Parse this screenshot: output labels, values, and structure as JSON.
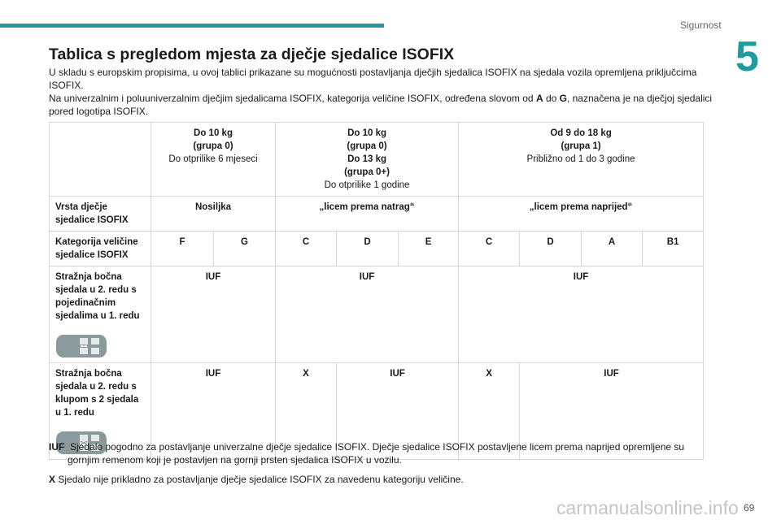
{
  "header": {
    "section": "Sigurnost",
    "chapter": "5"
  },
  "title": "Tablica s pregledom mjesta za dječje sjedalice ISOFIX",
  "intro": {
    "paragraph1": "U skladu s europskim propisima, u ovoj tablici prikazane su mogućnosti postavljanja dječjih sjedalica ISOFIX na sjedala vozila opremljena priključcima ISOFIX.",
    "paragraph2": [
      "Na univerzalnim i poluuniverzalnim dječjim sjedalicama ISOFIX, kategorija veličine ISOFIX, određena slovom od ",
      "A",
      " do ",
      "G",
      ", naznačena je na dječjoj sjedalici pored logotipa ISOFIX."
    ]
  },
  "table": {
    "header": [
      {
        "weight": [
          "Do 10 kg",
          "(grupa 0)"
        ],
        "age": "Do otprilike 6 mjeseci"
      },
      {
        "weight": [
          "Do 10 kg",
          "(grupa 0)",
          "Do 13 kg",
          "(grupa 0+)"
        ],
        "age": "Do otprilike 1 godine"
      },
      {
        "weight": [
          "Od 9 do 18 kg",
          "(grupa 1)"
        ],
        "age": "Približno od 1 do 3 godine"
      }
    ],
    "seat_type": {
      "label": "Vrsta dječje sjedalice ISOFIX",
      "values": [
        "Nosiljka",
        "„licem prema natrag“",
        "„licem prema naprijed“"
      ]
    },
    "size_class": {
      "label": "Kategorija veličine sjedalice ISOFIX",
      "values": [
        "F",
        "G",
        "C",
        "D",
        "E",
        "C",
        "D",
        "A",
        "B1"
      ]
    },
    "rows": [
      {
        "label": "Stražnja bočna sjedala u 2. redu s pojedinačnim sjedalima u 1. redu",
        "values": [
          "IUF",
          "IUF",
          "IUF"
        ]
      },
      {
        "label": "Stražnja bočna sjedala u 2. redu s klupom s 2 sjedala u 1. redu",
        "values": [
          "IUF",
          "X",
          "IUF",
          "X",
          "IUF"
        ]
      }
    ]
  },
  "footnotes": [
    {
      "key": "IUF",
      "text": "Sjedalo pogodno za postavljanje univerzalne dječje sjedalice ISOFIX. Dječje sjedalice ISOFIX postavljene licem prema naprijed opremljene su gornjim remenom koji je postavljen na gornji prsten sjedalica ISOFIX u vozilu."
    },
    {
      "key": "X",
      "text": "Sjedalo nije prikladno za postavljanje dječje sjedalice ISOFIX za navedenu kategoriju veličine."
    }
  ],
  "footer": {
    "page": "69",
    "watermark": "carmanualsonline.info"
  }
}
